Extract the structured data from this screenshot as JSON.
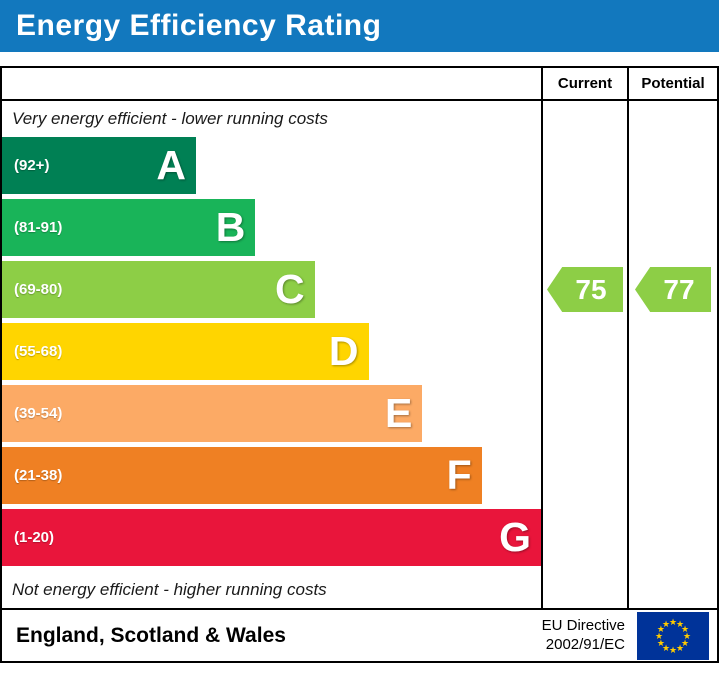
{
  "title": "Energy Efficiency Rating",
  "columns": {
    "current": "Current",
    "potential": "Potential"
  },
  "labels": {
    "top": "Very energy efficient - lower running costs",
    "bottom": "Not energy efficient - higher running costs"
  },
  "chart_data": {
    "type": "bar",
    "title": "Energy Efficiency Rating",
    "bands": [
      {
        "letter": "A",
        "range": "(92+)",
        "color": "#008054",
        "width_pct": 36
      },
      {
        "letter": "B",
        "range": "(81-91)",
        "color": "#19b459",
        "width_pct": 47
      },
      {
        "letter": "C",
        "range": "(69-80)",
        "color": "#8dce46",
        "width_pct": 58
      },
      {
        "letter": "D",
        "range": "(55-68)",
        "color": "#ffd500",
        "width_pct": 68
      },
      {
        "letter": "E",
        "range": "(39-54)",
        "color": "#fcaa65",
        "width_pct": 78
      },
      {
        "letter": "F",
        "range": "(21-38)",
        "color": "#ef8023",
        "width_pct": 89
      },
      {
        "letter": "G",
        "range": "(1-20)",
        "color": "#e9153b",
        "width_pct": 100
      }
    ],
    "current": {
      "value": 75,
      "band": "C",
      "color": "#8dce46"
    },
    "potential": {
      "value": 77,
      "band": "C",
      "color": "#8dce46"
    }
  },
  "footer": {
    "region": "England, Scotland & Wales",
    "directive_line1": "EU Directive",
    "directive_line2": "2002/91/EC"
  },
  "theme": {
    "title_bg": "#1278be",
    "flag_blue": "#003399",
    "flag_star": "#ffcc00",
    "border": "#000000"
  }
}
